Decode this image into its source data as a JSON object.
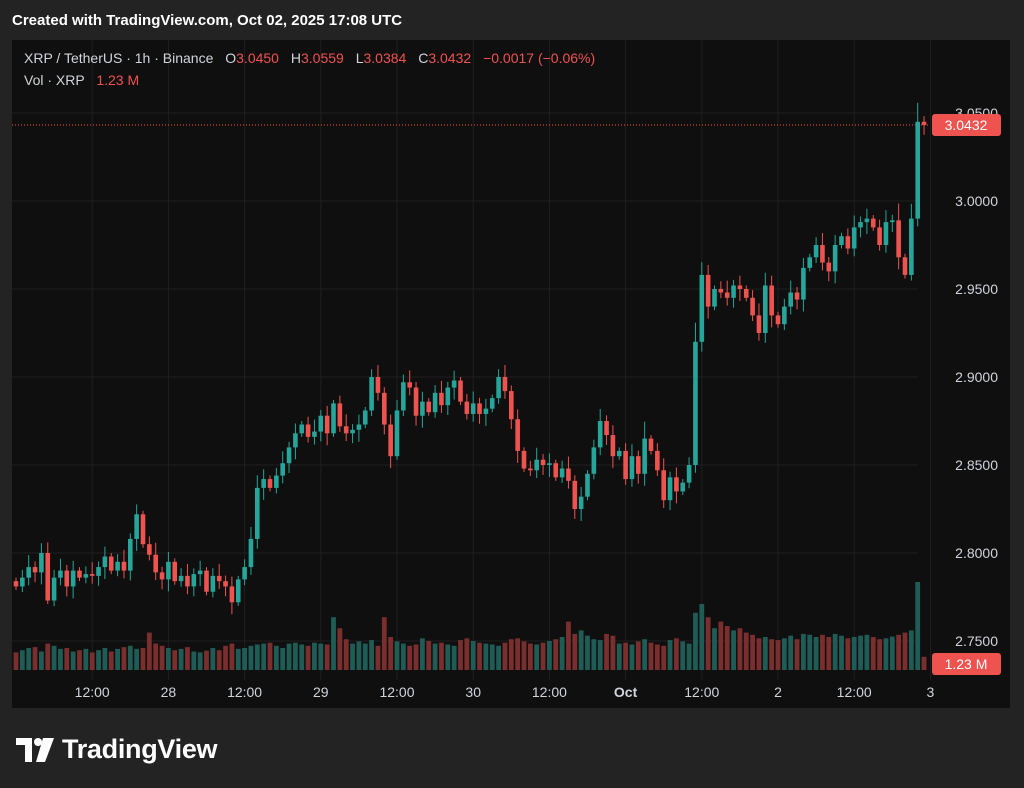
{
  "header": {
    "created_text": "Created with TradingView.com, Oct 02, 2025 17:08 UTC"
  },
  "legend": {
    "symbol": "XRP / TetherUS · 1h · Binance",
    "o_label": "O",
    "o_value": "3.0450",
    "h_label": "H",
    "h_value": "3.0559",
    "l_label": "L",
    "l_value": "3.0384",
    "c_label": "C",
    "c_value": "3.0432",
    "change": "−0.0017 (−0.06%)",
    "vol_label": "Vol · XRP",
    "vol_value": "1.23 M"
  },
  "price_badge": "3.0432",
  "volume_badge": "1.23 M",
  "footer": {
    "brand": "TradingView"
  },
  "colors": {
    "up": "#26a69a",
    "down": "#ef5350",
    "vol_up": "#1f5c56",
    "vol_down": "#7a2e2d",
    "background": "#0f0f0f",
    "text": "#d1d4dc"
  },
  "chart_data": {
    "type": "candlestick",
    "interval": "1h",
    "y_axis_ticks": [
      "3.0500",
      "3.0000",
      "2.9500",
      "2.9000",
      "2.8500",
      "2.8000",
      "2.7500"
    ],
    "x_axis_ticks": [
      {
        "hour": 12,
        "label": "12:00"
      },
      {
        "hour": 24,
        "label": "28"
      },
      {
        "hour": 36,
        "label": "12:00"
      },
      {
        "hour": 48,
        "label": "29"
      },
      {
        "hour": 60,
        "label": "12:00"
      },
      {
        "hour": 72,
        "label": "30"
      },
      {
        "hour": 84,
        "label": "12:00"
      },
      {
        "hour": 96,
        "label": "Oct"
      },
      {
        "hour": 108,
        "label": "12:00"
      },
      {
        "hour": 120,
        "label": "2"
      },
      {
        "hour": 132,
        "label": "12:00"
      },
      {
        "hour": 144,
        "label": "3"
      }
    ],
    "last_price": 3.0432,
    "closes": [
      2.781,
      2.786,
      2.792,
      2.789,
      2.8,
      2.773,
      2.786,
      2.79,
      2.781,
      2.79,
      2.786,
      2.788,
      2.787,
      2.792,
      2.798,
      2.79,
      2.795,
      2.79,
      2.808,
      2.822,
      2.805,
      2.799,
      2.789,
      2.785,
      2.795,
      2.784,
      2.787,
      2.781,
      2.788,
      2.79,
      2.778,
      2.787,
      2.784,
      2.781,
      2.772,
      2.785,
      2.792,
      2.808,
      2.837,
      2.842,
      2.837,
      2.844,
      2.851,
      2.86,
      2.868,
      2.873,
      2.866,
      2.869,
      2.878,
      2.868,
      2.885,
      2.872,
      2.868,
      2.87,
      2.873,
      2.881,
      2.9,
      2.891,
      2.873,
      2.855,
      2.881,
      2.897,
      2.894,
      2.878,
      2.886,
      2.88,
      2.891,
      2.884,
      2.894,
      2.898,
      2.886,
      2.879,
      2.885,
      2.879,
      2.882,
      2.888,
      2.9,
      2.892,
      2.876,
      2.858,
      2.848,
      2.847,
      2.853,
      2.85,
      2.851,
      2.843,
      2.848,
      2.841,
      2.825,
      2.832,
      2.845,
      2.86,
      2.875,
      2.867,
      2.855,
      2.858,
      2.842,
      2.855,
      2.845,
      2.865,
      2.858,
      2.847,
      2.83,
      2.843,
      2.835,
      2.84,
      2.85,
      2.92,
      2.958,
      2.94,
      2.95,
      2.948,
      2.945,
      2.952,
      2.95,
      2.945,
      2.935,
      2.925,
      2.952,
      2.935,
      2.93,
      2.94,
      2.948,
      2.944,
      2.962,
      2.968,
      2.975,
      2.965,
      2.96,
      2.975,
      2.98,
      2.973,
      2.985,
      2.988,
      2.99,
      2.985,
      2.975,
      2.988,
      2.989,
      2.968,
      2.958,
      2.99,
      3.045,
      3.0432
    ],
    "volumes": [
      0.4,
      0.45,
      0.5,
      0.52,
      0.42,
      0.6,
      0.55,
      0.48,
      0.5,
      0.42,
      0.45,
      0.48,
      0.4,
      0.45,
      0.5,
      0.42,
      0.48,
      0.52,
      0.55,
      0.48,
      0.5,
      0.85,
      0.6,
      0.55,
      0.5,
      0.45,
      0.48,
      0.52,
      0.42,
      0.4,
      0.44,
      0.5,
      0.45,
      0.55,
      0.6,
      0.48,
      0.5,
      0.55,
      0.58,
      0.6,
      0.62,
      0.55,
      0.5,
      0.6,
      0.62,
      0.58,
      0.55,
      0.62,
      0.6,
      0.58,
      1.2,
      0.95,
      0.7,
      0.6,
      0.65,
      0.6,
      0.68,
      0.55,
      1.2,
      0.75,
      0.65,
      0.6,
      0.55,
      0.58,
      0.72,
      0.66,
      0.6,
      0.62,
      0.58,
      0.55,
      0.68,
      0.72,
      0.66,
      0.62,
      0.6,
      0.58,
      0.55,
      0.62,
      0.7,
      0.72,
      0.65,
      0.6,
      0.58,
      0.62,
      0.66,
      0.7,
      0.75,
      1.1,
      0.82,
      0.9,
      0.78,
      0.7,
      0.68,
      0.82,
      0.78,
      0.6,
      0.62,
      0.58,
      0.65,
      0.7,
      0.62,
      0.58,
      0.55,
      0.68,
      0.72,
      0.65,
      0.6,
      1.3,
      1.5,
      1.2,
      0.95,
      1.1,
      1.0,
      0.9,
      0.95,
      0.85,
      0.8,
      0.72,
      0.75,
      0.7,
      0.68,
      0.72,
      0.78,
      0.7,
      0.82,
      0.8,
      0.75,
      0.8,
      0.75,
      0.82,
      0.78,
      0.72,
      0.75,
      0.78,
      0.8,
      0.75,
      0.7,
      0.72,
      0.76,
      0.8,
      0.85,
      0.9,
      2.0,
      0.3
    ]
  }
}
